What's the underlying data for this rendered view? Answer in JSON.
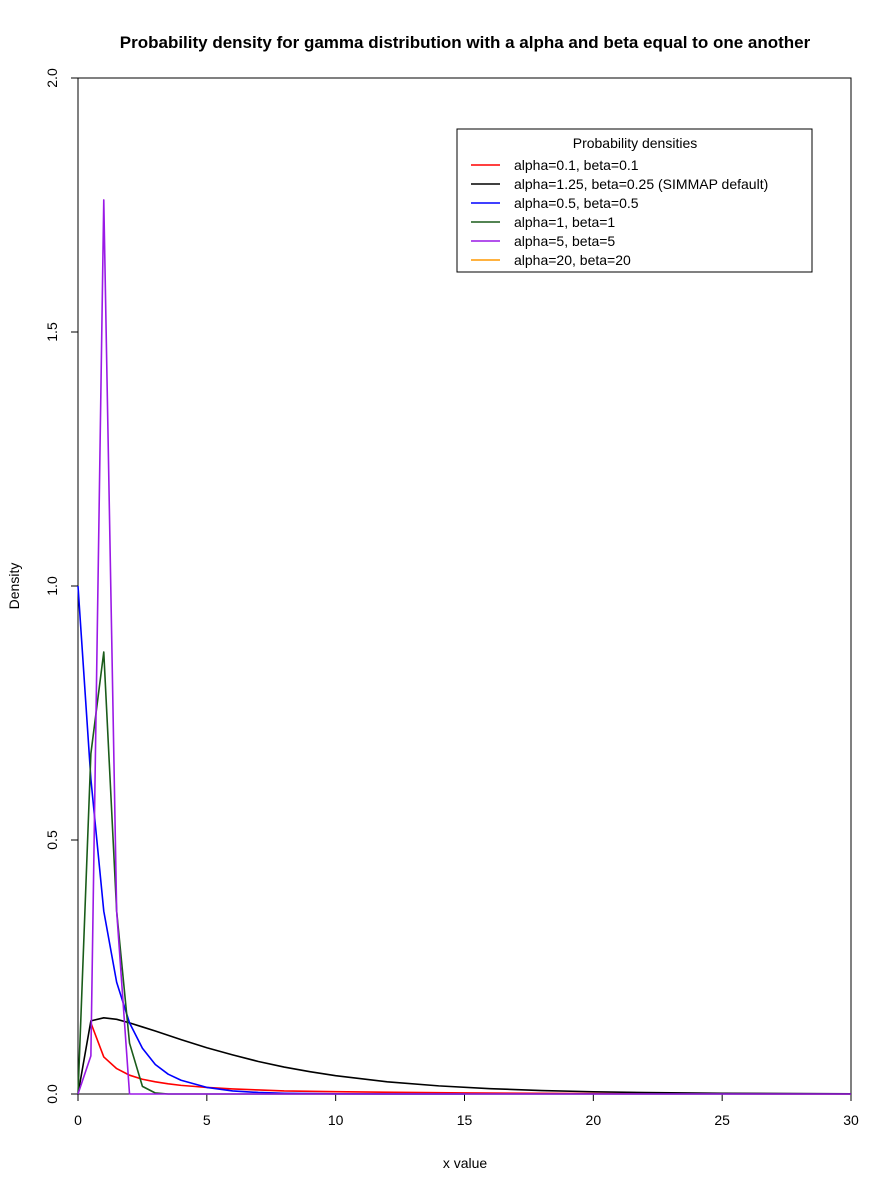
{
  "chart_data": {
    "type": "line",
    "title": "Probability density for gamma distribution with a alpha and beta equal to one another",
    "xlabel": "x value",
    "ylabel": "Density",
    "xlim": [
      0,
      30
    ],
    "ylim": [
      0,
      2
    ],
    "xticks": [
      "0",
      "5",
      "10",
      "15",
      "20",
      "25",
      "30"
    ],
    "yticks": [
      "0.0",
      "0.5",
      "1.0",
      "1.5",
      "2.0"
    ],
    "grid": false,
    "legend": {
      "title": "Probability densities",
      "position": "top-right"
    },
    "series": [
      {
        "name": "alpha=0.1, beta=0.1",
        "color": "#ff0000",
        "x": [
          0.5,
          1,
          1.5,
          2,
          2.5,
          3,
          3.5,
          4,
          4.5,
          5,
          6,
          7,
          8,
          10,
          15,
          20,
          25,
          30
        ],
        "y": [
          0.14,
          0.073,
          0.05,
          0.037,
          0.029,
          0.024,
          0.02,
          0.017,
          0.015,
          0.013,
          0.01,
          0.008,
          0.006,
          0.0045,
          0.002,
          0.001,
          0.0005,
          0.0002
        ]
      },
      {
        "name": "alpha=1.25, beta=0.25 (SIMMAP default)",
        "color": "#000000",
        "x": [
          0,
          0.5,
          1,
          1.5,
          2,
          2.5,
          3,
          4,
          5,
          6,
          7,
          8,
          9,
          10,
          12,
          14,
          16,
          18,
          20,
          22,
          25,
          30
        ],
        "y": [
          0,
          0.144,
          0.15,
          0.147,
          0.14,
          0.132,
          0.124,
          0.107,
          0.091,
          0.077,
          0.064,
          0.053,
          0.044,
          0.036,
          0.024,
          0.016,
          0.0105,
          0.0068,
          0.0044,
          0.0028,
          0.0013,
          0.0004
        ]
      },
      {
        "name": "alpha=0.5, beta=0.5",
        "color": "#0000ff",
        "x": [
          0,
          0.5,
          1,
          1.5,
          2,
          2.5,
          3,
          3.5,
          4,
          5,
          6,
          7,
          8,
          10,
          15
        ],
        "y": [
          1.0,
          0.62,
          0.36,
          0.22,
          0.14,
          0.09,
          0.058,
          0.039,
          0.027,
          0.013,
          0.006,
          0.003,
          0.0015,
          0.0003,
          0
        ]
      },
      {
        "name": "alpha=1, beta=1",
        "color": "#1a5c1a",
        "x": [
          0,
          0.5,
          1,
          1.5,
          2,
          2.5,
          3,
          3.5,
          4,
          5,
          6,
          10,
          30
        ],
        "y": [
          0,
          0.67,
          0.87,
          0.36,
          0.1,
          0.015,
          0.002,
          0,
          0,
          0,
          0,
          0,
          0
        ]
      },
      {
        "name": "alpha=5, beta=5",
        "color": "#9a19e6",
        "x": [
          0,
          0.5,
          1,
          1.5,
          2,
          2.5,
          3,
          5,
          10,
          30
        ],
        "y": [
          0,
          0.075,
          1.76,
          0.36,
          0,
          0,
          0,
          0,
          0,
          0
        ]
      },
      {
        "name": "alpha=20, beta=20",
        "color": "#ff9900",
        "x": [],
        "y": []
      }
    ]
  }
}
